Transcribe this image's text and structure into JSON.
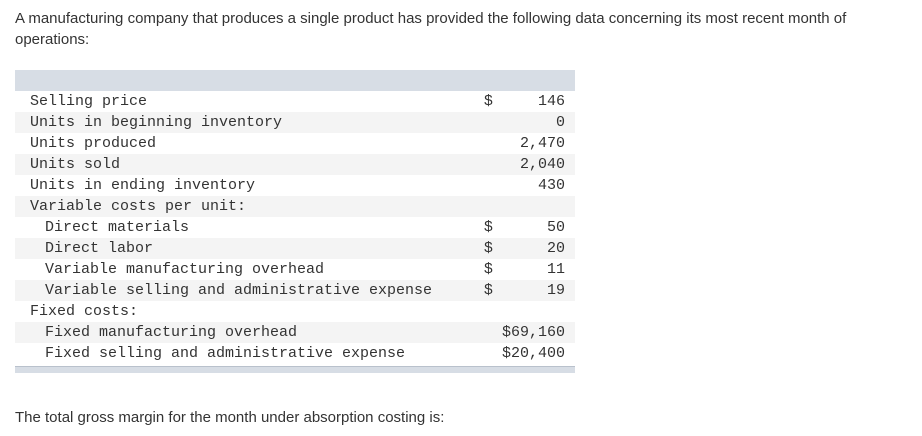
{
  "intro_text": "A manufacturing company that produces a single product has provided the following data concerning its most recent month of operations:",
  "rows": [
    {
      "label": "Selling price",
      "currency": "$",
      "value": "146"
    },
    {
      "label": "Units in beginning inventory",
      "currency": "",
      "value": "0"
    },
    {
      "label": "Units produced",
      "currency": "",
      "value": "2,470"
    },
    {
      "label": "Units sold",
      "currency": "",
      "value": "2,040"
    },
    {
      "label": "Units in ending inventory",
      "currency": "",
      "value": "430"
    },
    {
      "label": "Variable costs per unit:",
      "currency": "",
      "value": ""
    },
    {
      "label": "Direct materials",
      "currency": "$",
      "value": "50"
    },
    {
      "label": "Direct labor",
      "currency": "$",
      "value": "20"
    },
    {
      "label": "Variable manufacturing overhead",
      "currency": "$",
      "value": "11"
    },
    {
      "label": "Variable selling and administrative expense",
      "currency": "$",
      "value": "19"
    },
    {
      "label": "Fixed costs:",
      "currency": "",
      "value": ""
    },
    {
      "label": "Fixed manufacturing overhead",
      "currency": "",
      "value": "$69,160"
    },
    {
      "label": "Fixed selling and administrative expense",
      "currency": "",
      "value": "$20,400"
    }
  ],
  "question_text": "The total gross margin for the month under absorption costing is:"
}
